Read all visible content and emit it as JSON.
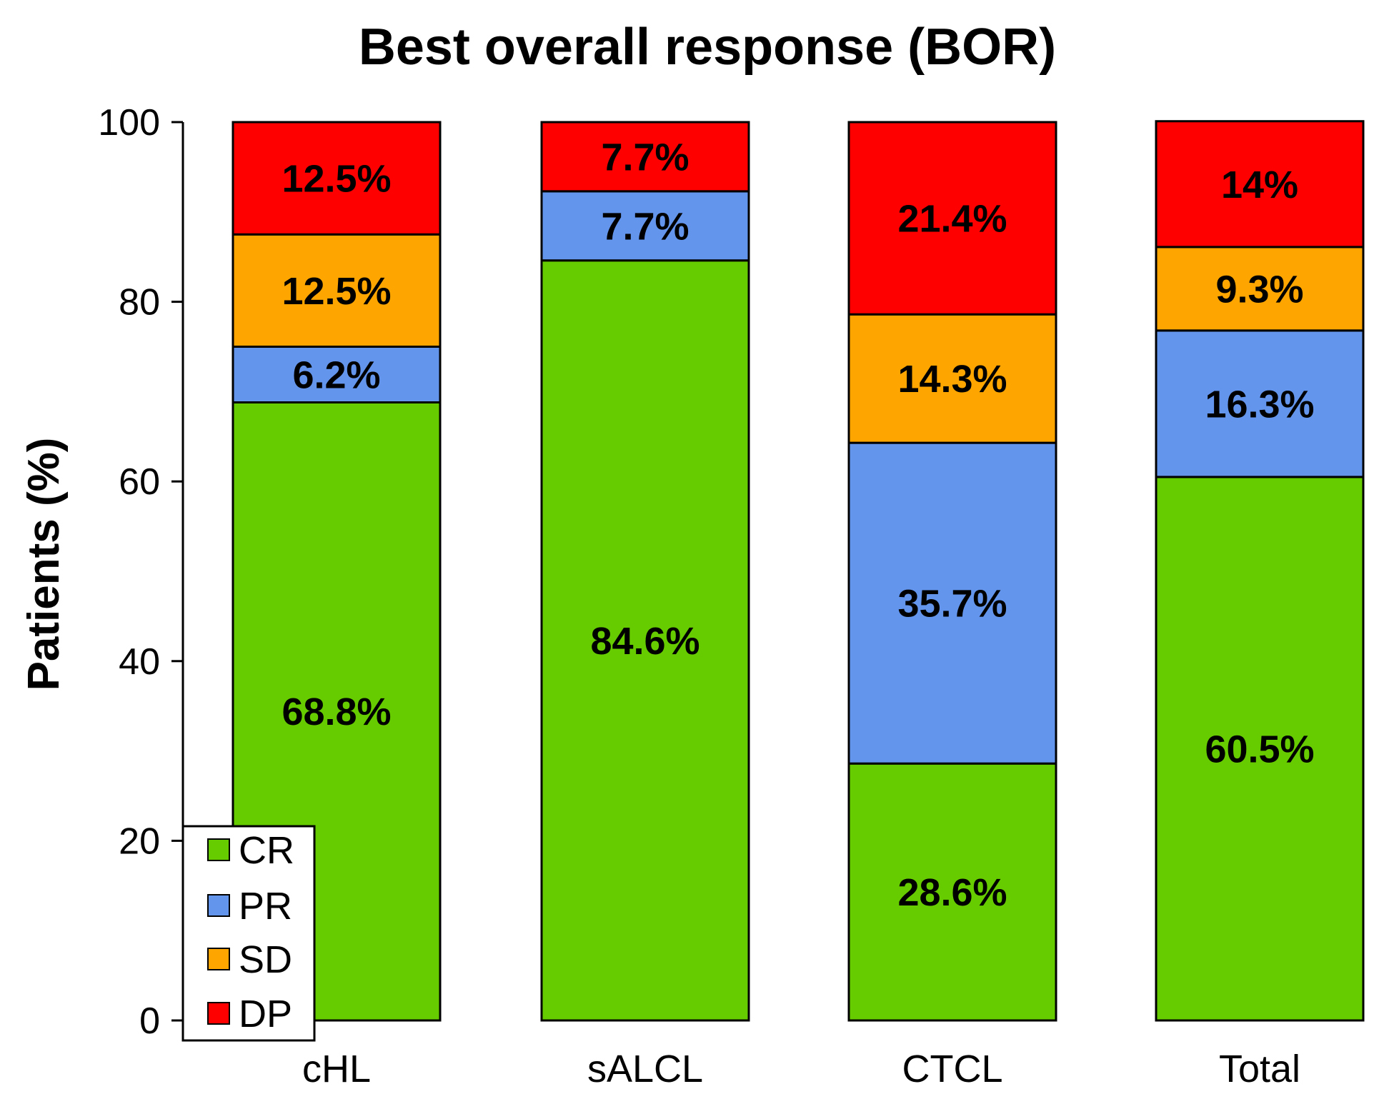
{
  "chart_data": {
    "type": "bar",
    "stacked": true,
    "title": "Best overall response (BOR)",
    "xlabel": "",
    "ylabel": "Patients (%)",
    "ylim": [
      0,
      100
    ],
    "yticks": [
      0,
      20,
      40,
      60,
      80,
      100
    ],
    "categories": [
      "cHL",
      "sALCL",
      "CTCL",
      "Total"
    ],
    "series": [
      {
        "name": "CR",
        "color": "#66cc00",
        "values": [
          68.8,
          84.6,
          28.6,
          60.5
        ],
        "labels": [
          "68.8%",
          "84.6%",
          "28.6%",
          "60.5%"
        ]
      },
      {
        "name": "PR",
        "color": "#6495ed",
        "values": [
          6.2,
          7.7,
          35.7,
          16.3
        ],
        "labels": [
          "6.2%",
          "7.7%",
          "35.7%",
          "16.3%"
        ]
      },
      {
        "name": "SD",
        "color": "#ffa500",
        "values": [
          12.5,
          0,
          14.3,
          9.3
        ],
        "labels": [
          "12.5%",
          "",
          "14.3%",
          "9.3%"
        ]
      },
      {
        "name": "DP",
        "color": "#ff0000",
        "values": [
          12.5,
          7.7,
          21.4,
          14
        ],
        "labels": [
          "12.5%",
          "7.7%",
          "21.4%",
          "14%"
        ]
      }
    ],
    "legend": {
      "position": "bottom-left",
      "entries": [
        "CR",
        "PR",
        "SD",
        "DP"
      ]
    },
    "grid": false
  }
}
